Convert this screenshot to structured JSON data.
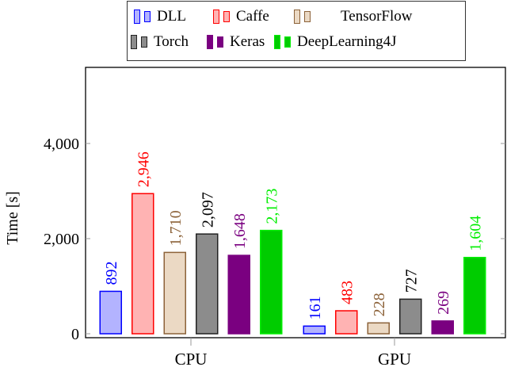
{
  "chart_data": {
    "type": "bar",
    "title": "",
    "xlabel": "",
    "ylabel": "Time [s]",
    "ylim": [
      0,
      5600
    ],
    "yticks": [
      0,
      2000,
      4000
    ],
    "ytick_labels": [
      "0",
      "2,000",
      "4,000"
    ],
    "grid": false,
    "legend_position": "top-center, outside plot, 3 columns",
    "categories": [
      "CPU",
      "GPU"
    ],
    "series": [
      {
        "name": "DLL",
        "values": [
          892,
          161
        ],
        "labels": [
          "892",
          "161"
        ],
        "fill": "#b3b3ff",
        "stroke": "#0000ff",
        "text_color": "#0000ff"
      },
      {
        "name": "Caffe",
        "values": [
          2946,
          483
        ],
        "labels": [
          "2,946",
          "483"
        ],
        "fill": "#ffb3b3",
        "stroke": "#ff0000",
        "text_color": "#ff0000"
      },
      {
        "name": "TensorFlow",
        "values": [
          1710,
          228
        ],
        "labels": [
          "1,710",
          "228"
        ],
        "fill": "#ebd9c4",
        "stroke": "#8c6239",
        "text_color": "#8c6239"
      },
      {
        "name": "Torch",
        "values": [
          2097,
          727
        ],
        "labels": [
          "2,097",
          "727"
        ],
        "fill": "#8c8c8c",
        "stroke": "#222222",
        "text_color": "#000000"
      },
      {
        "name": "Keras",
        "values": [
          1648,
          269
        ],
        "labels": [
          "1,648",
          "269"
        ],
        "fill": "#7a0080",
        "stroke": "#7a0080",
        "text_color": "#7a0080"
      },
      {
        "name": "DeepLearning4J",
        "values": [
          2173,
          1604
        ],
        "labels": [
          "2,173",
          "1,604"
        ],
        "fill": "#00cc00",
        "stroke": "#00ee00",
        "text_color": "#00ee00"
      }
    ]
  }
}
